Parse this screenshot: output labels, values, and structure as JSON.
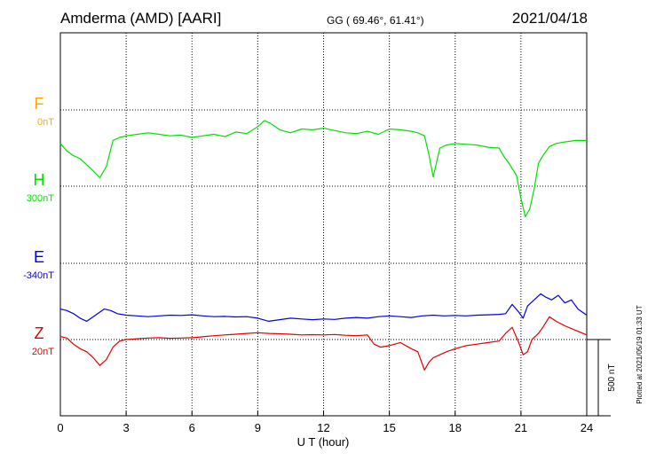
{
  "header": {
    "station": "Amderma (AMD)  [AARI]",
    "coords": "GG ( 69.46°,  61.41°)",
    "date": "2021/04/18"
  },
  "footer": {
    "plotted": "Plotted at 2021/05/19 01:33 UT"
  },
  "chart_data": {
    "type": "line",
    "title": "Amderma (AMD)  [AARI]",
    "xlabel": "U T (hour)",
    "xlim": [
      0,
      24
    ],
    "xticks": [
      "0",
      "3",
      "6",
      "9",
      "12",
      "15",
      "18",
      "21",
      "24"
    ],
    "grid": true,
    "scale_bar": {
      "label": "500 nT",
      "value_nT": 500
    },
    "series": [
      {
        "name": "F",
        "baseline_label": "0nT",
        "color": "#ffa500",
        "x": [],
        "y": []
      },
      {
        "name": "H",
        "baseline_label": "300nT",
        "color": "#00e000",
        "x": [
          0,
          0.3,
          0.6,
          0.9,
          1.2,
          1.5,
          1.8,
          2.1,
          2.4,
          2.7,
          3,
          3.5,
          4,
          4.5,
          5,
          5.5,
          6,
          6.5,
          7,
          7.5,
          8,
          8.5,
          9,
          9.3,
          9.6,
          10,
          10.5,
          11,
          11.5,
          12,
          12.5,
          13,
          13.5,
          14,
          14.5,
          15,
          15.5,
          16,
          16.3,
          16.6,
          16.8,
          17,
          17.3,
          17.6,
          18,
          18.5,
          19,
          19.5,
          20,
          20.2,
          20.5,
          20.8,
          21,
          21.2,
          21.4,
          21.6,
          21.8,
          22,
          22.3,
          22.6,
          23,
          23.5,
          24
        ],
        "y": [
          280,
          230,
          200,
          180,
          140,
          100,
          55,
          130,
          300,
          320,
          330,
          340,
          350,
          340,
          330,
          335,
          320,
          330,
          340,
          325,
          355,
          345,
          390,
          430,
          410,
          370,
          350,
          375,
          370,
          380,
          365,
          350,
          345,
          360,
          340,
          375,
          370,
          360,
          350,
          330,
          210,
          60,
          250,
          270,
          280,
          275,
          270,
          255,
          250,
          200,
          140,
          70,
          -80,
          -200,
          -150,
          -20,
          150,
          200,
          260,
          280,
          290,
          300,
          300
        ]
      },
      {
        "name": "E",
        "baseline_label": "-340nT",
        "color": "#0000e0",
        "x": [
          0,
          0.3,
          0.6,
          0.9,
          1.2,
          1.5,
          1.8,
          2,
          2.3,
          2.6,
          3,
          3.5,
          4,
          4.5,
          5,
          5.5,
          6,
          6.5,
          7,
          7.5,
          8,
          8.5,
          9,
          9.5,
          10,
          10.5,
          11,
          11.5,
          12,
          12.5,
          13,
          13.5,
          14,
          14.5,
          15,
          15.5,
          16,
          16.5,
          17,
          17.5,
          18,
          18.5,
          19,
          19.5,
          20,
          20.3,
          20.6,
          20.9,
          21.1,
          21.3,
          21.6,
          21.9,
          22.1,
          22.4,
          22.7,
          23,
          23.3,
          23.6,
          24
        ],
        "y": [
          -300,
          -310,
          -330,
          -360,
          -380,
          -350,
          -320,
          -300,
          -310,
          -330,
          -340,
          -345,
          -350,
          -345,
          -340,
          -342,
          -338,
          -345,
          -350,
          -348,
          -352,
          -350,
          -360,
          -380,
          -370,
          -360,
          -365,
          -370,
          -365,
          -368,
          -360,
          -355,
          -360,
          -350,
          -345,
          -350,
          -355,
          -345,
          -340,
          -345,
          -342,
          -345,
          -340,
          -338,
          -335,
          -330,
          -270,
          -320,
          -360,
          -280,
          -240,
          -200,
          -220,
          -240,
          -210,
          -260,
          -240,
          -300,
          -340
        ]
      },
      {
        "name": "Z",
        "baseline_label": "20nT",
        "color": "#e00000",
        "x": [
          0,
          0.3,
          0.6,
          0.9,
          1.2,
          1.5,
          1.8,
          2.1,
          2.4,
          2.7,
          3,
          3.5,
          4,
          4.5,
          5,
          5.5,
          6,
          6.5,
          7,
          7.5,
          8,
          8.5,
          9,
          9.5,
          10,
          10.5,
          11,
          11.5,
          12,
          12.5,
          13,
          13.5,
          14,
          14.3,
          14.6,
          15,
          15.5,
          16,
          16.3,
          16.6,
          16.8,
          17,
          17.3,
          17.6,
          18,
          18.5,
          19,
          19.5,
          20,
          20.3,
          20.6,
          20.9,
          21.1,
          21.3,
          21.5,
          21.8,
          22,
          22.3,
          22.6,
          23,
          23.5,
          24
        ],
        "y": [
          20,
          10,
          -30,
          -60,
          -80,
          -120,
          -170,
          -130,
          -50,
          -10,
          0,
          5,
          10,
          12,
          8,
          10,
          12,
          18,
          25,
          30,
          35,
          40,
          45,
          40,
          38,
          35,
          30,
          32,
          30,
          33,
          28,
          25,
          30,
          -30,
          -50,
          -40,
          -20,
          -60,
          -80,
          -200,
          -150,
          -120,
          -100,
          -80,
          -60,
          -40,
          -30,
          -20,
          -10,
          40,
          80,
          -20,
          -100,
          -80,
          0,
          40,
          80,
          150,
          120,
          90,
          60,
          30
        ]
      }
    ]
  }
}
